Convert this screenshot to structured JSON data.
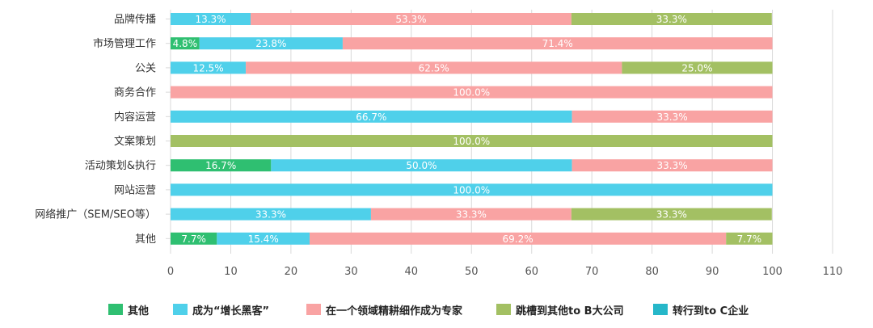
{
  "chart_data": {
    "type": "bar",
    "orientation": "horizontal",
    "stacked": true,
    "categories": [
      "品牌传播",
      "市场管理工作",
      "公关",
      "商务合作",
      "内容运营",
      "文案策划",
      "活动策划&执行",
      "网站运营",
      "网络推广（SEM/SEO等）",
      "其他"
    ],
    "series": [
      {
        "name": "其他",
        "color": "#2fbf71",
        "values": [
          0,
          4.8,
          0,
          0,
          0,
          0,
          16.7,
          0,
          0,
          7.7
        ],
        "labels": [
          "",
          "4.8%",
          "",
          "",
          "",
          "",
          "16.7%",
          "",
          "",
          "7.7%"
        ]
      },
      {
        "name": "成为“增长黑客”",
        "color": "#4fd0ea",
        "values": [
          13.3,
          23.8,
          12.5,
          0,
          66.7,
          0,
          50.0,
          100.0,
          33.3,
          15.4
        ],
        "labels": [
          "13.3%",
          "23.8%",
          "12.5%",
          "",
          "66.7%",
          "",
          "50.0%",
          "100.0%",
          "33.3%",
          "15.4%"
        ]
      },
      {
        "name": "在一个领域精耕细作成为专家",
        "color": "#f9a3a3",
        "values": [
          53.3,
          71.4,
          62.5,
          100.0,
          33.3,
          0,
          33.3,
          0,
          33.3,
          69.2
        ],
        "labels": [
          "53.3%",
          "71.4%",
          "62.5%",
          "100.0%",
          "33.3%",
          "",
          "33.3%",
          "",
          "33.3%",
          "69.2%"
        ]
      },
      {
        "name": "跳槽到其他to B大公司",
        "color": "#a3c063",
        "values": [
          33.3,
          0,
          25.0,
          0,
          0,
          100.0,
          0,
          0,
          33.3,
          7.7
        ],
        "labels": [
          "33.3%",
          "",
          "25.0%",
          "",
          "",
          "100.0%",
          "",
          "",
          "33.3%",
          "7.7%"
        ]
      },
      {
        "name": "转行到to C企业",
        "color": "#26b7c9",
        "values": [
          0,
          0,
          0,
          0,
          0,
          0,
          0,
          0,
          0,
          0
        ],
        "labels": [
          "",
          "",
          "",
          "",
          "",
          "",
          "",
          "",
          "",
          ""
        ]
      }
    ],
    "xlim": [
      0,
      110
    ],
    "xticks": [
      "0",
      "10",
      "20",
      "30",
      "40",
      "50",
      "60",
      "70",
      "80",
      "90",
      "100",
      "110"
    ],
    "grid": true,
    "legend_position": "bottom"
  }
}
